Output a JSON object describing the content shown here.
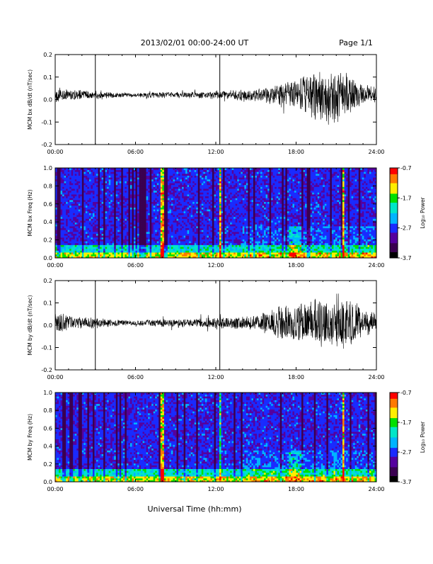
{
  "header": {
    "date_range": "2013/02/01   00:00-24:00 UT",
    "page": "Page 1/1"
  },
  "footer": {
    "xlabel": "Universal Time (hh:mm)"
  },
  "colors": {
    "trace": "#000000",
    "colormap": [
      "#000000",
      "#3a0050",
      "#55009e",
      "#1a2bff",
      "#00b4ff",
      "#00e6c8",
      "#00e000",
      "#ffee00",
      "#ff7a00",
      "#ff0000"
    ]
  },
  "chart_data": [
    {
      "type": "line",
      "ylabel": "MCM bx dB/dt (nT/sec)",
      "xlim": [
        0,
        24
      ],
      "ylim": [
        -0.2,
        0.2
      ],
      "yticks": [
        -0.2,
        -0.1,
        0.0,
        0.1,
        0.2
      ],
      "ytick_labels": [
        "-0.2",
        "-0.1",
        "0.0",
        "0.1",
        "0.2"
      ],
      "xticks": [
        0,
        6,
        12,
        18,
        24
      ],
      "xtick_labels": [
        "00:00",
        "06:00",
        "12:00",
        "18:00",
        "24:00"
      ],
      "baseline": 0.02,
      "envelope": {
        "hours": [
          0,
          1,
          2,
          3,
          4,
          6,
          8,
          10,
          12,
          14,
          15,
          16,
          17,
          18,
          19,
          20,
          21,
          22,
          23,
          24
        ],
        "amplitude": [
          0.04,
          0.03,
          0.02,
          0.02,
          0.015,
          0.01,
          0.015,
          0.015,
          0.02,
          0.025,
          0.03,
          0.04,
          0.06,
          0.08,
          0.12,
          0.13,
          0.14,
          0.09,
          0.05,
          0.04
        ]
      },
      "spikes_hours": [
        3,
        12.3
      ]
    },
    {
      "type": "heatmap",
      "ylabel": "MCM bx Freq (Hz)",
      "xlim": [
        0,
        24
      ],
      "ylim": [
        0,
        1.0
      ],
      "yticks": [
        0.0,
        0.2,
        0.4,
        0.6,
        0.8,
        1.0
      ],
      "ytick_labels": [
        "0.0",
        "0.2",
        "0.4",
        "0.6",
        "0.8",
        "1.0"
      ],
      "xticks": [
        0,
        6,
        12,
        18,
        24
      ],
      "xtick_labels": [
        "00:00",
        "06:00",
        "12:00",
        "18:00",
        "24:00"
      ],
      "colorbar": {
        "label": "Log₁₀ Power",
        "range": [
          -3.7,
          -0.7
        ],
        "ticks": [
          -0.7,
          -1.7,
          -2.7,
          -3.7
        ],
        "tick_labels": [
          "-0.7",
          "-1.7",
          "-2.7",
          "-3.7"
        ]
      },
      "vertical_lines_hours": [
        8,
        12.3,
        21.5
      ],
      "activity_hours": [
        17.5,
        18.5
      ]
    },
    {
      "type": "line",
      "ylabel": "MCM by dB/dt (nT/sec)",
      "xlim": [
        0,
        24
      ],
      "ylim": [
        -0.2,
        0.2
      ],
      "yticks": [
        -0.2,
        -0.1,
        0.0,
        0.1,
        0.2
      ],
      "ytick_labels": [
        "-0.2",
        "-0.1",
        "0.0",
        "0.1",
        "0.2"
      ],
      "xticks": [
        0,
        6,
        12,
        18,
        24
      ],
      "xtick_labels": [
        "00:00",
        "06:00",
        "12:00",
        "18:00",
        "24:00"
      ],
      "baseline": 0.01,
      "envelope": {
        "hours": [
          0,
          1,
          2,
          3,
          4,
          6,
          8,
          10,
          12,
          14,
          15,
          16,
          17,
          18,
          19,
          20,
          21,
          22,
          23,
          24
        ],
        "amplitude": [
          0.05,
          0.04,
          0.03,
          0.025,
          0.02,
          0.012,
          0.02,
          0.02,
          0.025,
          0.03,
          0.04,
          0.06,
          0.09,
          0.1,
          0.12,
          0.13,
          0.15,
          0.12,
          0.07,
          0.05
        ]
      },
      "spikes_hours": [
        3,
        12.3
      ]
    },
    {
      "type": "heatmap",
      "ylabel": "MCM by Freq (Hz)",
      "xlim": [
        0,
        24
      ],
      "ylim": [
        0,
        1.0
      ],
      "yticks": [
        0.0,
        0.2,
        0.4,
        0.6,
        0.8,
        1.0
      ],
      "ytick_labels": [
        "0.0",
        "0.2",
        "0.4",
        "0.6",
        "0.8",
        "1.0"
      ],
      "xticks": [
        0,
        6,
        12,
        18,
        24
      ],
      "xtick_labels": [
        "00:00",
        "06:00",
        "12:00",
        "18:00",
        "24:00"
      ],
      "colorbar": {
        "label": "Log₁₀ Power",
        "range": [
          -3.7,
          -0.7
        ],
        "ticks": [
          -0.7,
          -1.7,
          -2.7,
          -3.7
        ],
        "tick_labels": [
          "-0.7",
          "-1.7",
          "-2.7",
          "-3.7"
        ]
      },
      "vertical_lines_hours": [
        8,
        12.3,
        21.5
      ],
      "activity_hours": [
        17.5,
        18.5
      ]
    }
  ]
}
